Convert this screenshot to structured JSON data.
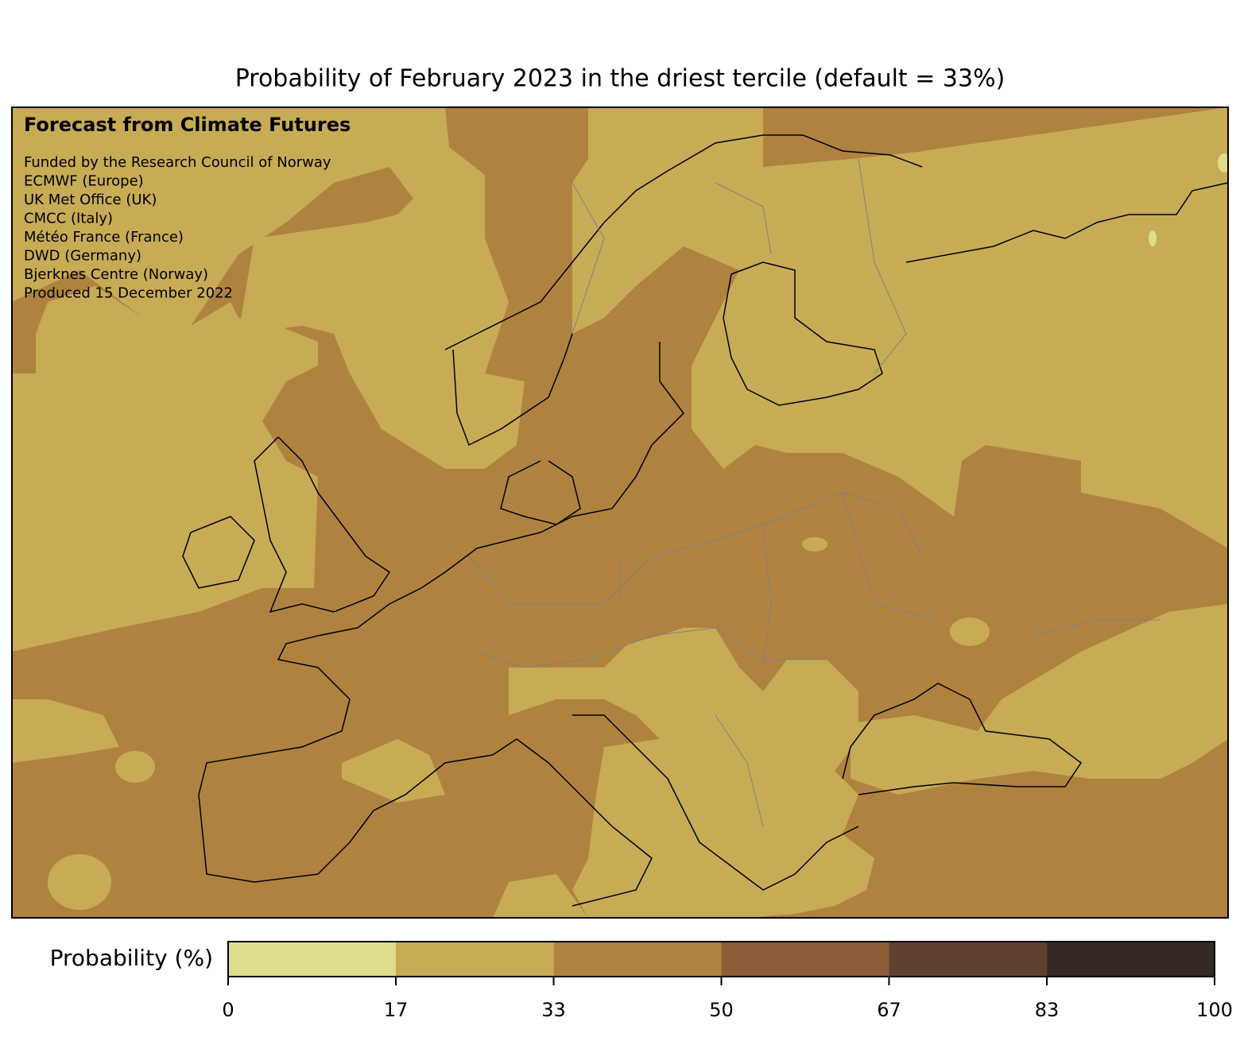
{
  "title": "Probability of February 2023 in the driest tercile (default = 33%)",
  "map": {
    "heading": "Forecast from Climate Futures",
    "credits": [
      "Funded by the Research Council of Norway",
      "ECMWF (Europe)",
      "UK Met Office (UK)",
      "CMCC (Italy)",
      "Météo France (France)",
      "DWD (Germany)",
      "Bjerknes Centre (Norway)",
      "Produced 15 December 2022"
    ]
  },
  "colorbar": {
    "label": "Probability (%)",
    "ticks": [
      0,
      17,
      33,
      50,
      67,
      83,
      100
    ],
    "colors": [
      "#dedd8c",
      "#c8ab55",
      "#b08240",
      "#8b5c38",
      "#5e4030",
      "#352a24"
    ]
  }
}
